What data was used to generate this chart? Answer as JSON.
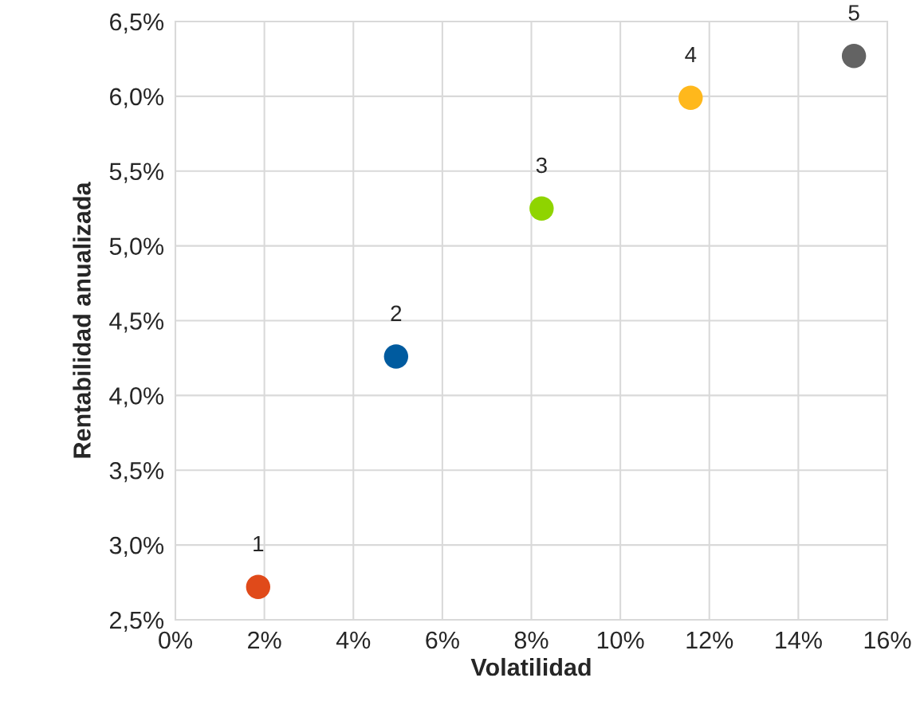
{
  "chart_data": {
    "type": "scatter",
    "xlabel": "Volatilidad",
    "ylabel": "Rentabilidad anualizada",
    "x": [
      1.86,
      4.96,
      8.23,
      11.58,
      15.25
    ],
    "series": [
      {
        "values": [
          2.72,
          4.26,
          5.25,
          5.99,
          6.27
        ],
        "colors": [
          "#e04a1a",
          "#005b9f",
          "#8fd400",
          "#ffb81c",
          "#636363"
        ]
      }
    ],
    "annotations": [
      {
        "text": "1",
        "x": 1.86,
        "y": 2.72
      },
      {
        "text": "2",
        "x": 4.96,
        "y": 4.26
      },
      {
        "text": "3",
        "x": 8.23,
        "y": 5.25
      },
      {
        "text": "4",
        "x": 11.58,
        "y": 5.99
      },
      {
        "text": "5",
        "x": 15.25,
        "y": 6.27
      }
    ],
    "xlim": [
      0,
      16
    ],
    "ylim": [
      2.5,
      6.5
    ],
    "xticks": [
      {
        "value": 0,
        "label": "0%"
      },
      {
        "value": 2,
        "label": "2%"
      },
      {
        "value": 4,
        "label": "4%"
      },
      {
        "value": 6,
        "label": "6%"
      },
      {
        "value": 8,
        "label": "8%"
      },
      {
        "value": 10,
        "label": "10%"
      },
      {
        "value": 12,
        "label": "12%"
      },
      {
        "value": 14,
        "label": "14%"
      },
      {
        "value": 16,
        "label": "16%"
      }
    ],
    "yticks": [
      {
        "value": 2.5,
        "label": "2,5%"
      },
      {
        "value": 3.0,
        "label": "3,0%"
      },
      {
        "value": 3.5,
        "label": "3,5%"
      },
      {
        "value": 4.0,
        "label": "4,0%"
      },
      {
        "value": 4.5,
        "label": "4,5%"
      },
      {
        "value": 5.0,
        "label": "5,0%"
      },
      {
        "value": 5.5,
        "label": "5,5%"
      },
      {
        "value": 6.0,
        "label": "6,0%"
      },
      {
        "value": 6.5,
        "label": "6,5%"
      }
    ],
    "grid": true,
    "marker": "circle"
  }
}
